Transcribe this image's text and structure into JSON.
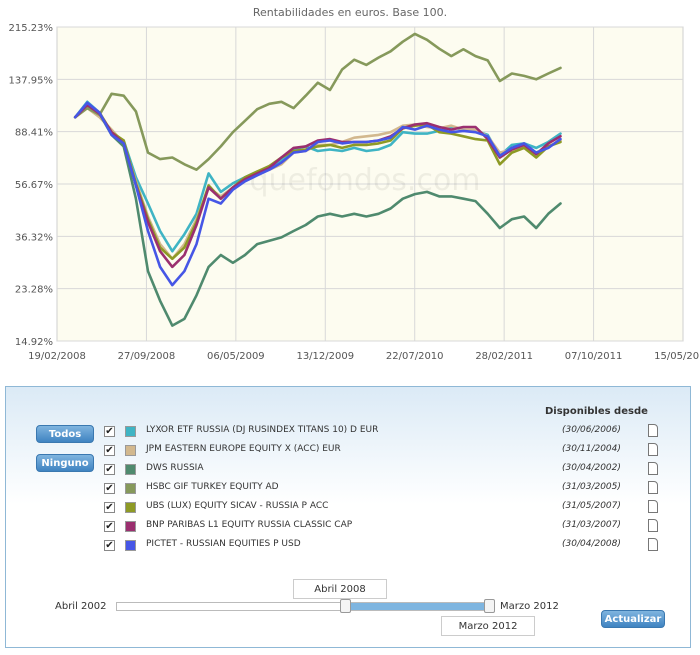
{
  "chart_data": {
    "type": "line",
    "title": "Rentabilidades en euros. Base 100.",
    "y_ticks": [
      "215.23%",
      "137.95%",
      "88.41%",
      "56.67%",
      "36.32%",
      "23.28%",
      "14.92%"
    ],
    "y_tick_values": [
      215.23,
      137.95,
      88.41,
      56.67,
      36.32,
      23.28,
      14.92
    ],
    "x_ticks": [
      "19/02/2008",
      "27/09/2008",
      "06/05/2009",
      "13/12/2009",
      "22/07/2010",
      "28/02/2011",
      "07/10/2011",
      "15/05/2012"
    ],
    "xlim": [
      0,
      1548
    ],
    "ylim": [
      14.92,
      215.23
    ],
    "yscale": "log",
    "x_days_start": 45,
    "x_days_step": 30,
    "watermark": "quefondos.com",
    "series": [
      {
        "name": "LYXOR ETF RUSSIA (DJ RUSINDEX TITANS 10) D EUR",
        "color": "#3fb4c4",
        "values": [
          100,
          114,
          104,
          86,
          82,
          60,
          48,
          38,
          32,
          37,
          44,
          62,
          53,
          57,
          60,
          63,
          65,
          69,
          76,
          78,
          75,
          76,
          75,
          77,
          75,
          76,
          79,
          88,
          87,
          87,
          89,
          92,
          90,
          89,
          86,
          72,
          79,
          80,
          77,
          81,
          87
        ]
      },
      {
        "name": "JPM EASTERN EUROPE EQUITY X (ACC) EUR",
        "color": "#d2b88e",
        "values": [
          100,
          108,
          100,
          90,
          80,
          58,
          43,
          34,
          30,
          34,
          42,
          55,
          51,
          55,
          59,
          62,
          64,
          67,
          74,
          75,
          79,
          79,
          81,
          84,
          85,
          86,
          88,
          93,
          94,
          92,
          91,
          93,
          90,
          90,
          85,
          74,
          76,
          78,
          74,
          78,
          82
        ]
      },
      {
        "name": "DWS RUSSIA",
        "color": "#4f8a6e",
        "values": [
          100,
          110,
          103,
          86,
          78,
          50,
          27,
          21,
          17,
          18,
          22,
          28,
          31,
          29,
          31,
          34,
          35,
          36,
          38,
          40,
          43,
          44,
          43,
          44,
          43,
          44,
          46,
          50,
          52,
          53,
          51,
          51,
          50,
          49,
          44,
          39,
          42,
          43,
          39,
          44,
          48
        ]
      },
      {
        "name": "HSBC GIF TURKEY EQUITY AD",
        "color": "#86995b",
        "values": [
          100,
          108,
          102,
          122,
          120,
          105,
          74,
          70,
          71,
          67,
          64,
          70,
          78,
          88,
          97,
          107,
          112,
          114,
          108,
          120,
          134,
          126,
          150,
          163,
          156,
          166,
          175,
          190,
          203,
          193,
          179,
          168,
          178,
          168,
          162,
          136,
          145,
          142,
          138,
          145,
          152
        ]
      },
      {
        "name": "UBS (LUX) EQUITY SICAV - RUSSIA P ACC",
        "color": "#8e9a25",
        "values": [
          100,
          112,
          104,
          88,
          82,
          57,
          42,
          33,
          30,
          33,
          41,
          56,
          50,
          55,
          60,
          63,
          66,
          71,
          75,
          76,
          78,
          79,
          77,
          79,
          79,
          80,
          82,
          91,
          93,
          94,
          88,
          87,
          85,
          83,
          82,
          67,
          74,
          77,
          71,
          78,
          81
        ]
      },
      {
        "name": "BNP PARIBAS L1 EQUITY RUSSIA CLASSIC CAP",
        "color": "#9b2f6f",
        "values": [
          100,
          111,
          103,
          88,
          80,
          56,
          41,
          32,
          28,
          31,
          40,
          55,
          50,
          55,
          59,
          62,
          65,
          71,
          77,
          78,
          82,
          83,
          81,
          81,
          81,
          82,
          85,
          91,
          94,
          95,
          92,
          90,
          92,
          92,
          83,
          71,
          76,
          79,
          73,
          80,
          85
        ]
      },
      {
        "name": "PICTET - RUSSIAN EQUITIES P USD",
        "color": "#4656e6",
        "values": [
          100,
          113,
          104,
          86,
          80,
          56,
          38,
          28,
          24,
          27,
          34,
          50,
          48,
          54,
          58,
          61,
          64,
          68,
          74,
          75,
          81,
          82,
          80,
          81,
          81,
          82,
          84,
          92,
          90,
          93,
          90,
          88,
          89,
          88,
          85,
          72,
          77,
          80,
          74,
          77,
          83
        ]
      }
    ]
  },
  "controls": {
    "todos": "Todos",
    "ninguno": "Ninguno",
    "disponibles_header": "Disponibles desde",
    "funds": [
      {
        "name": "LYXOR ETF RUSSIA (DJ RUSINDEX TITANS 10) D EUR",
        "date": "(30/06/2006)",
        "checked": true
      },
      {
        "name": "JPM EASTERN EUROPE EQUITY X (ACC) EUR",
        "date": "(30/11/2004)",
        "checked": true
      },
      {
        "name": "DWS RUSSIA",
        "date": "(30/04/2002)",
        "checked": true
      },
      {
        "name": "HSBC GIF TURKEY EQUITY AD",
        "date": "(31/03/2005)",
        "checked": true
      },
      {
        "name": "UBS (LUX) EQUITY SICAV - RUSSIA P ACC",
        "date": "(31/05/2007)",
        "checked": true
      },
      {
        "name": "BNP PARIBAS L1 EQUITY RUSSIA CLASSIC CAP",
        "date": "(31/03/2007)",
        "checked": true
      },
      {
        "name": "PICTET - RUSSIAN EQUITIES P USD",
        "date": "(30/04/2008)",
        "checked": true
      }
    ],
    "check_mark": "✔",
    "slider": {
      "min_label": "Abril 2002",
      "max_label": "Marzo 2012",
      "from_label": "Abril 2008",
      "to_label": "Marzo 2012"
    },
    "actualizar": "Actualizar"
  }
}
